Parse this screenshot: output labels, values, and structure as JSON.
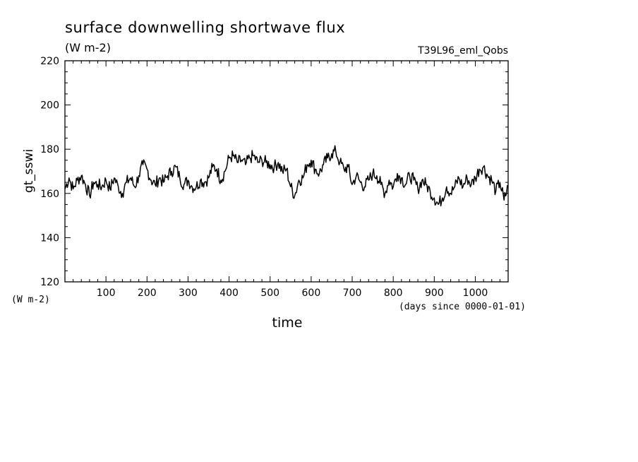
{
  "chart_data": {
    "type": "line",
    "title": "surface downwelling shortwave flux",
    "title_units": "(W m-2)",
    "experiment": "T39L96_eml_Qobs",
    "xlabel": "time",
    "xunits": "(days since 0000-01-01)",
    "ylabel": "gt_sswi",
    "yunits": "(W m-2)",
    "xlim": [
      0,
      1080
    ],
    "ylim": [
      120,
      220
    ],
    "xticks": [
      100,
      200,
      300,
      400,
      500,
      600,
      700,
      800,
      900,
      1000
    ],
    "yticks": [
      120,
      140,
      160,
      180,
      200,
      220
    ],
    "grid": false,
    "series": [
      {
        "x": [
          0,
          10,
          20,
          30,
          40,
          50,
          60,
          70,
          80,
          90,
          100,
          110,
          120,
          130,
          140,
          150,
          160,
          170,
          180,
          190,
          200,
          210,
          220,
          230,
          240,
          250,
          260,
          270,
          280,
          290,
          300,
          310,
          320,
          330,
          340,
          350,
          360,
          370,
          380,
          390,
          400,
          410,
          420,
          430,
          440,
          450,
          460,
          470,
          480,
          490,
          500,
          510,
          520,
          530,
          540,
          550,
          560,
          570,
          580,
          590,
          600,
          610,
          620,
          630,
          640,
          650,
          660,
          670,
          680,
          690,
          700,
          710,
          720,
          730,
          740,
          750,
          760,
          770,
          780,
          790,
          800,
          810,
          820,
          830,
          840,
          850,
          860,
          870,
          880,
          890,
          900,
          910,
          920,
          930,
          940,
          950,
          960,
          970,
          980,
          990,
          1000,
          1010,
          1020,
          1030,
          1040,
          1050,
          1060,
          1070,
          1080
        ],
        "y": [
          162,
          167,
          162,
          166,
          168,
          164,
          159,
          165,
          164,
          163,
          166,
          162,
          167,
          163,
          160,
          165,
          167,
          163,
          168,
          173,
          171,
          166,
          164,
          167,
          165,
          168,
          170,
          172,
          167,
          164,
          166,
          163,
          163,
          166,
          165,
          167,
          172,
          171,
          166,
          170,
          176,
          177,
          174,
          175,
          173,
          176,
          177,
          174,
          175,
          174,
          173,
          172,
          174,
          170,
          171,
          163,
          159,
          166,
          167,
          173,
          175,
          171,
          169,
          173,
          176,
          178,
          179,
          174,
          171,
          172,
          164,
          168,
          165,
          163,
          166,
          169,
          168,
          164,
          160,
          166,
          163,
          169,
          167,
          164,
          168,
          166,
          162,
          166,
          164,
          161,
          158,
          155,
          158,
          163,
          160,
          163,
          167,
          163,
          167,
          164,
          167,
          171,
          172,
          168,
          166,
          161,
          165,
          157,
          163
        ]
      }
    ]
  }
}
